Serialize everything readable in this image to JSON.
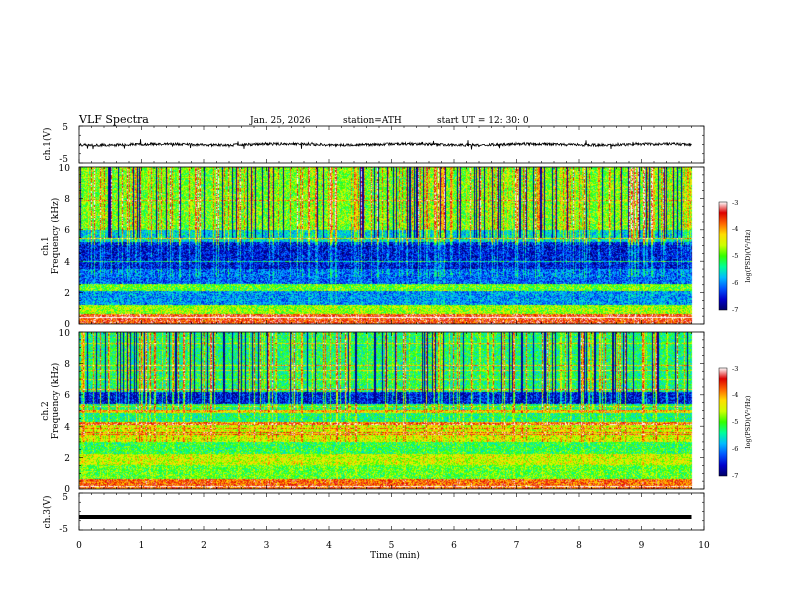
{
  "header": {
    "title": "VLF  Spectra",
    "date": "Jan. 25, 2026",
    "station": "station=ATH",
    "start": "start  UT  =   12: 30: 0"
  },
  "colors": {
    "colormap": [
      "#000066",
      "#0000cc",
      "#0055ff",
      "#00bbff",
      "#00ff99",
      "#33ff00",
      "#ccff00",
      "#ffdd00",
      "#ff6600",
      "#dd0000",
      "#ffffff"
    ]
  },
  "chart_data": [
    {
      "id": "ch1-waveform",
      "type": "line",
      "ylabel": "ch.1(V)",
      "ylim": [
        -5,
        5
      ],
      "yticks": [
        "5",
        "-5"
      ],
      "series": [
        {
          "name": "ch.1",
          "level": 0,
          "noise": 0.35,
          "spikes": 0.6
        }
      ]
    },
    {
      "id": "ch1-spectrogram",
      "type": "heatmap",
      "ylabel": "ch.1\nFrequency (kHz)",
      "ylabel_lines": [
        "ch.1",
        "Frequency (kHz)"
      ],
      "ylim": [
        0,
        10
      ],
      "yticks": [
        "0",
        "2",
        "4",
        "6",
        "8",
        "10"
      ],
      "zlim": [
        -7,
        -3
      ],
      "colorbar_label": "log(PSD)(V²/Hz)",
      "colorbar_ticks": [
        "-3",
        "-4",
        "-5",
        "-6",
        "-7"
      ],
      "bands_khz": [
        {
          "f0": 0.0,
          "f1": 0.6,
          "level": -3.6
        },
        {
          "f0": 0.6,
          "f1": 1.2,
          "level": -4.8
        },
        {
          "f0": 1.2,
          "f1": 2.1,
          "level": -6.0
        },
        {
          "f0": 2.1,
          "f1": 2.5,
          "level": -5.0
        },
        {
          "f0": 2.5,
          "f1": 3.5,
          "level": -6.2
        },
        {
          "f0": 3.5,
          "f1": 5.2,
          "level": -6.6
        },
        {
          "f0": 5.2,
          "f1": 6.0,
          "level": -5.8
        },
        {
          "f0": 6.0,
          "f1": 10.0,
          "level": -5.0
        }
      ]
    },
    {
      "id": "ch2-spectrogram",
      "type": "heatmap",
      "ylabel": "ch.2\nFrequency (kHz)",
      "ylabel_lines": [
        "ch.2",
        "Frequency (kHz)"
      ],
      "ylim": [
        0,
        10
      ],
      "yticks": [
        "0",
        "2",
        "4",
        "6",
        "8",
        "10"
      ],
      "zlim": [
        -7,
        -3
      ],
      "colorbar_label": "log(PSD)(V²/Hz)",
      "colorbar_ticks": [
        "-3",
        "-4",
        "-5",
        "-6",
        "-7"
      ],
      "bands_khz": [
        {
          "f0": 0.0,
          "f1": 0.6,
          "level": -3.8
        },
        {
          "f0": 0.6,
          "f1": 1.5,
          "level": -5.0
        },
        {
          "f0": 1.5,
          "f1": 2.2,
          "level": -4.6
        },
        {
          "f0": 2.2,
          "f1": 3.0,
          "level": -5.2
        },
        {
          "f0": 3.0,
          "f1": 4.2,
          "level": -4.6
        },
        {
          "f0": 4.2,
          "f1": 5.4,
          "level": -5.4
        },
        {
          "f0": 5.4,
          "f1": 6.2,
          "level": -6.6
        },
        {
          "f0": 6.2,
          "f1": 10.0,
          "level": -5.4
        }
      ]
    },
    {
      "id": "ch3-waveform",
      "type": "line",
      "ylabel": "ch.3(V)",
      "ylim": [
        -5,
        5
      ],
      "yticks": [
        "5",
        "-5"
      ],
      "series": [
        {
          "name": "ch.3",
          "level": -1.5,
          "noise": 0.1,
          "spikes": 0
        }
      ]
    }
  ],
  "xaxis": {
    "label": "Time  (min)",
    "range": [
      0,
      10
    ],
    "data_end": 9.8,
    "ticks": [
      "0",
      "1",
      "2",
      "3",
      "4",
      "5",
      "6",
      "7",
      "8",
      "9",
      "10"
    ]
  }
}
